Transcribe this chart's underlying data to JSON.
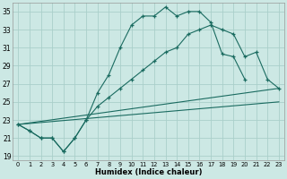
{
  "xlabel": "Humidex (Indice chaleur)",
  "background_color": "#cce8e4",
  "grid_color": "#aacfca",
  "line_color": "#1a6b60",
  "xlim": [
    -0.5,
    23.5
  ],
  "ylim": [
    18.5,
    36.0
  ],
  "xticks": [
    0,
    1,
    2,
    3,
    4,
    5,
    6,
    7,
    8,
    9,
    10,
    11,
    12,
    13,
    14,
    15,
    16,
    17,
    18,
    19,
    20,
    21,
    22,
    23
  ],
  "yticks": [
    19,
    21,
    23,
    25,
    27,
    29,
    31,
    33,
    35
  ],
  "line1_x": [
    0,
    1,
    2,
    3,
    4,
    5,
    6,
    7,
    8,
    9,
    10,
    11,
    12,
    13,
    14,
    15,
    16,
    17,
    18,
    19,
    20,
    21,
    22
  ],
  "line1_y": [
    22.5,
    21.8,
    21.0,
    21.0,
    19.5,
    21.0,
    23.0,
    26.0,
    28.0,
    31.0,
    33.5,
    34.5,
    34.5,
    35.5,
    34.5,
    35.0,
    35.0,
    33.8,
    30.3,
    30.0,
    27.5,
    null,
    null
  ],
  "line2_x": [
    0,
    1,
    2,
    3,
    4,
    5,
    6,
    7,
    8,
    9,
    10,
    11,
    12,
    13,
    14,
    15,
    16,
    17,
    18,
    19,
    20,
    21,
    22,
    23
  ],
  "line2_y": [
    22.5,
    21.8,
    21.0,
    21.0,
    19.5,
    21.0,
    23.0,
    24.5,
    25.5,
    26.5,
    27.5,
    28.5,
    29.5,
    30.5,
    31.0,
    32.5,
    33.0,
    33.5,
    33.0,
    32.5,
    30.0,
    30.5,
    27.5,
    26.5
  ],
  "line3_x": [
    0,
    23
  ],
  "line3_y": [
    22.5,
    26.5
  ],
  "line4_x": [
    0,
    23
  ],
  "line4_y": [
    22.5,
    25.0
  ]
}
